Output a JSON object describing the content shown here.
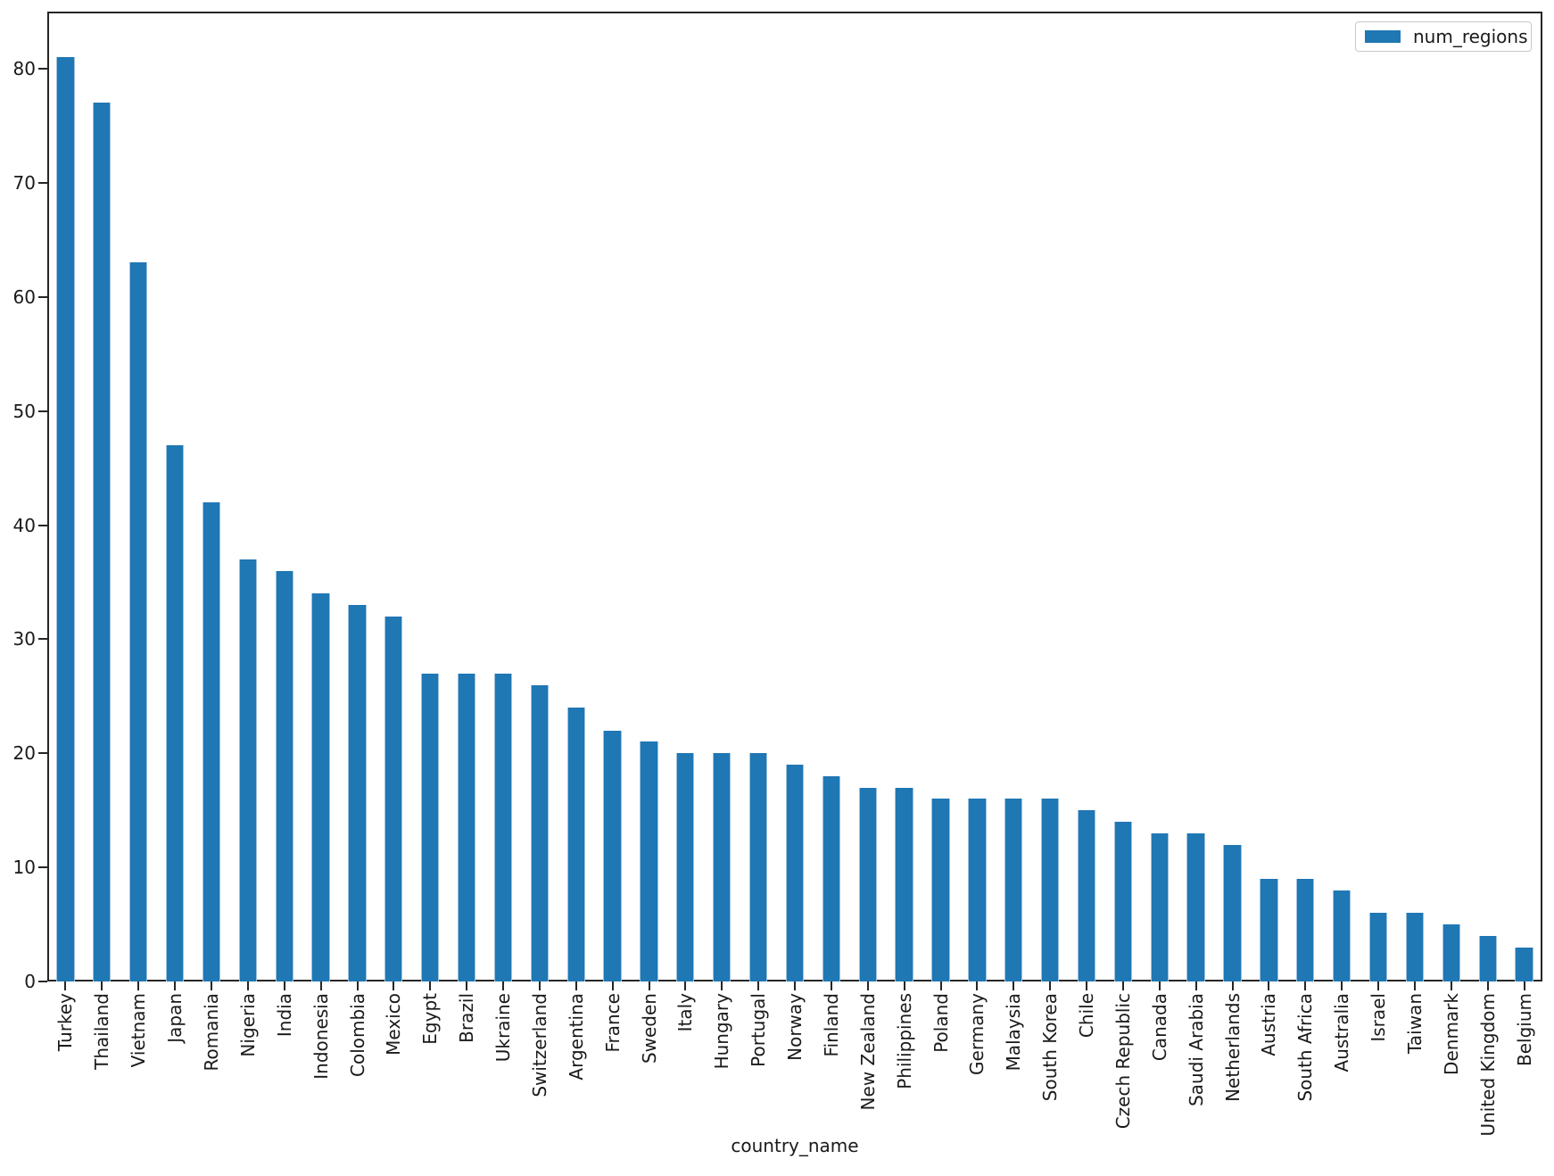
{
  "figure": {
    "background": "#ffffff"
  },
  "chart_data": {
    "type": "bar",
    "title": "",
    "xlabel": "country_name",
    "ylabel": "",
    "ylim": [
      0,
      85
    ],
    "yticks": [
      0,
      10,
      20,
      30,
      40,
      50,
      60,
      70,
      80
    ],
    "grid": false,
    "legend_position": "upper right",
    "categories": [
      "Turkey",
      "Thailand",
      "Vietnam",
      "Japan",
      "Romania",
      "Nigeria",
      "India",
      "Indonesia",
      "Colombia",
      "Mexico",
      "Egypt",
      "Brazil",
      "Ukraine",
      "Switzerland",
      "Argentina",
      "France",
      "Sweden",
      "Italy",
      "Hungary",
      "Portugal",
      "Norway",
      "Finland",
      "New Zealand",
      "Philippines",
      "Poland",
      "Germany",
      "Malaysia",
      "South Korea",
      "Chile",
      "Czech Republic",
      "Canada",
      "Saudi Arabia",
      "Netherlands",
      "Austria",
      "South Africa",
      "Australia",
      "Israel",
      "Taiwan",
      "Denmark",
      "United Kingdom",
      "Belgium"
    ],
    "series": [
      {
        "name": "num_regions",
        "values": [
          81,
          77,
          63,
          47,
          42,
          37,
          36,
          34,
          33,
          32,
          27,
          27,
          27,
          26,
          24,
          22,
          21,
          20,
          20,
          20,
          19,
          18,
          17,
          17,
          16,
          16,
          16,
          16,
          15,
          14,
          13,
          13,
          12,
          9,
          9,
          8,
          6,
          6,
          5,
          4,
          3
        ]
      }
    ],
    "colors": {
      "bar": "#1f77b4",
      "axis": "#262626",
      "text": "#1a1a1a",
      "legend_border": "#c9c9c9"
    }
  }
}
